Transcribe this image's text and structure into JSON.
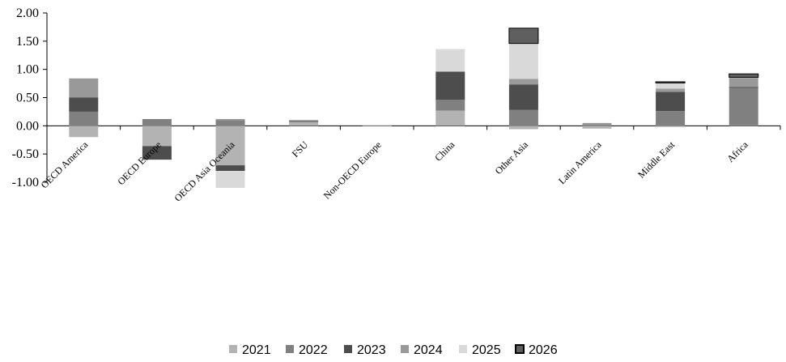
{
  "chart_data": {
    "type": "bar",
    "stacked": true,
    "title": "",
    "xlabel": "",
    "ylabel": "",
    "ylim": [
      -1.0,
      2.0
    ],
    "yticks": [
      "2.00",
      "1.50",
      "1.00",
      "0.50",
      "0.00",
      "-0.50",
      "-1.00"
    ],
    "grid": false,
    "legend_position": "bottom",
    "categories": [
      "OECD America",
      "OECD Europe",
      "OECD Asia Oceania",
      "FSU",
      "Non-OECD Europe",
      "China",
      "Other Asia",
      "Latin America",
      "Middle East",
      "Africa"
    ],
    "series": [
      {
        "name": "2021",
        "color": "#b3b3b3",
        "values": [
          -0.2,
          -0.36,
          -0.7,
          0.06,
          -0.01,
          0.27,
          -0.06,
          -0.05,
          -0.02,
          0.01
        ]
      },
      {
        "name": "2022",
        "color": "#808080",
        "values": [
          0.25,
          0.12,
          0.1,
          0.04,
          0.0,
          0.19,
          0.28,
          0.02,
          0.26,
          0.66
        ]
      },
      {
        "name": "2023",
        "color": "#4d4d4d",
        "values": [
          0.25,
          -0.24,
          -0.1,
          0.0,
          0.0,
          0.5,
          0.45,
          0.0,
          0.34,
          0.02
        ]
      },
      {
        "name": "2024",
        "color": "#999999",
        "values": [
          0.34,
          0.0,
          0.02,
          0.0,
          0.0,
          0.0,
          0.1,
          0.03,
          0.06,
          0.16
        ]
      },
      {
        "name": "2025",
        "color": "#d9d9d9",
        "values": [
          0.0,
          0.0,
          -0.3,
          0.0,
          0.0,
          0.4,
          0.63,
          0.0,
          0.1,
          0.01
        ]
      },
      {
        "name": "2026",
        "color": "#5f5f5f",
        "values": [
          0.0,
          0.0,
          0.0,
          0.0,
          0.0,
          0.0,
          0.27,
          0.0,
          0.02,
          0.06
        ]
      }
    ]
  }
}
